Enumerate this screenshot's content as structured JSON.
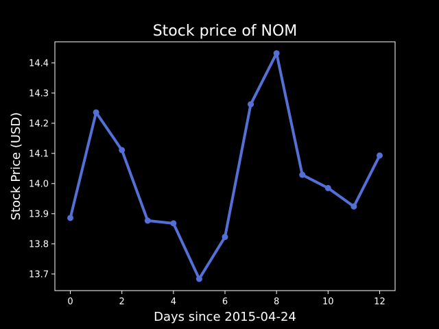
{
  "chart_data": {
    "type": "line",
    "title": "Stock price of NOM",
    "xlabel": "Days since 2015-04-24",
    "ylabel": "Stock Price (USD)",
    "x": [
      0,
      1,
      2,
      3,
      4,
      5,
      6,
      7,
      8,
      9,
      10,
      11,
      12
    ],
    "series": [
      {
        "values": [
          13.886,
          14.236,
          14.111,
          13.877,
          13.868,
          13.684,
          13.823,
          14.263,
          14.432,
          14.029,
          13.985,
          13.924,
          14.093
        ]
      }
    ],
    "xlim": [
      -0.6,
      12.6
    ],
    "ylim": [
      13.645,
      14.47
    ],
    "xticks": [
      0,
      2,
      4,
      6,
      8,
      10,
      12
    ],
    "yticks": [
      13.7,
      13.8,
      13.9,
      14.0,
      14.1,
      14.2,
      14.3,
      14.4
    ],
    "ytick_labels": [
      "13.7",
      "13.8",
      "13.9",
      "14.0",
      "14.1",
      "14.2",
      "14.3",
      "14.4"
    ],
    "line_color": "#5470d6",
    "background": "#000000",
    "grid": false,
    "legend": "none"
  }
}
